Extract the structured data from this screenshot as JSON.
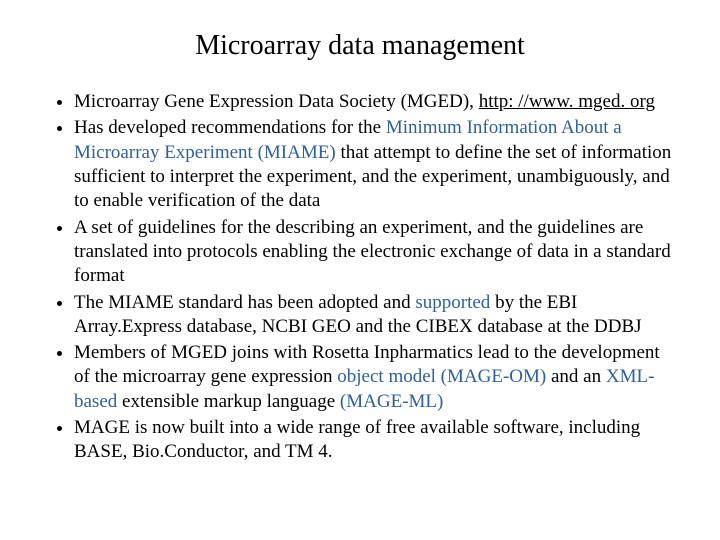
{
  "title": "Microarray data management",
  "colors": {
    "text": "#000000",
    "link_blue": "#2e5ea6",
    "background": "#ffffff"
  },
  "typography": {
    "title_fontsize": 28,
    "body_fontsize": 19,
    "font_family": "Times New Roman"
  },
  "bullets": {
    "b1": {
      "pre": "Microarray Gene Expression Data Society (MGED), ",
      "link": "http: //www. mged. org"
    },
    "b2": {
      "pre": "Has developed recommendations for the ",
      "term": "Minimum Information About a Microarray Experiment (MIAME)",
      "post": " that attempt to define the set of information sufficient to interpret the experiment, and the experiment, unambiguously, and to enable verification of the data"
    },
    "b3": "A set of guidelines for the describing an experiment, and the guidelines are translated into protocols enabling the electronic exchange of data in a standard format",
    "b4": {
      "pre": "The MIAME standard has been adopted and ",
      "term": "supported",
      "post": " by the EBI Array.Express database, NCBI GEO and the CIBEX database at the DDBJ"
    },
    "b5": {
      "pre": "Members of MGED joins with Rosetta Inpharmatics lead to the development of the microarray gene expression ",
      "term1": "object model (MAGE-OM)",
      "mid": " and an ",
      "term2": "XML-based",
      "mid2": " extensible markup language ",
      "term3": "(MAGE-ML)"
    },
    "b6": "MAGE is now built into a wide range of free available software, including BASE, Bio.Conductor, and TM 4."
  }
}
